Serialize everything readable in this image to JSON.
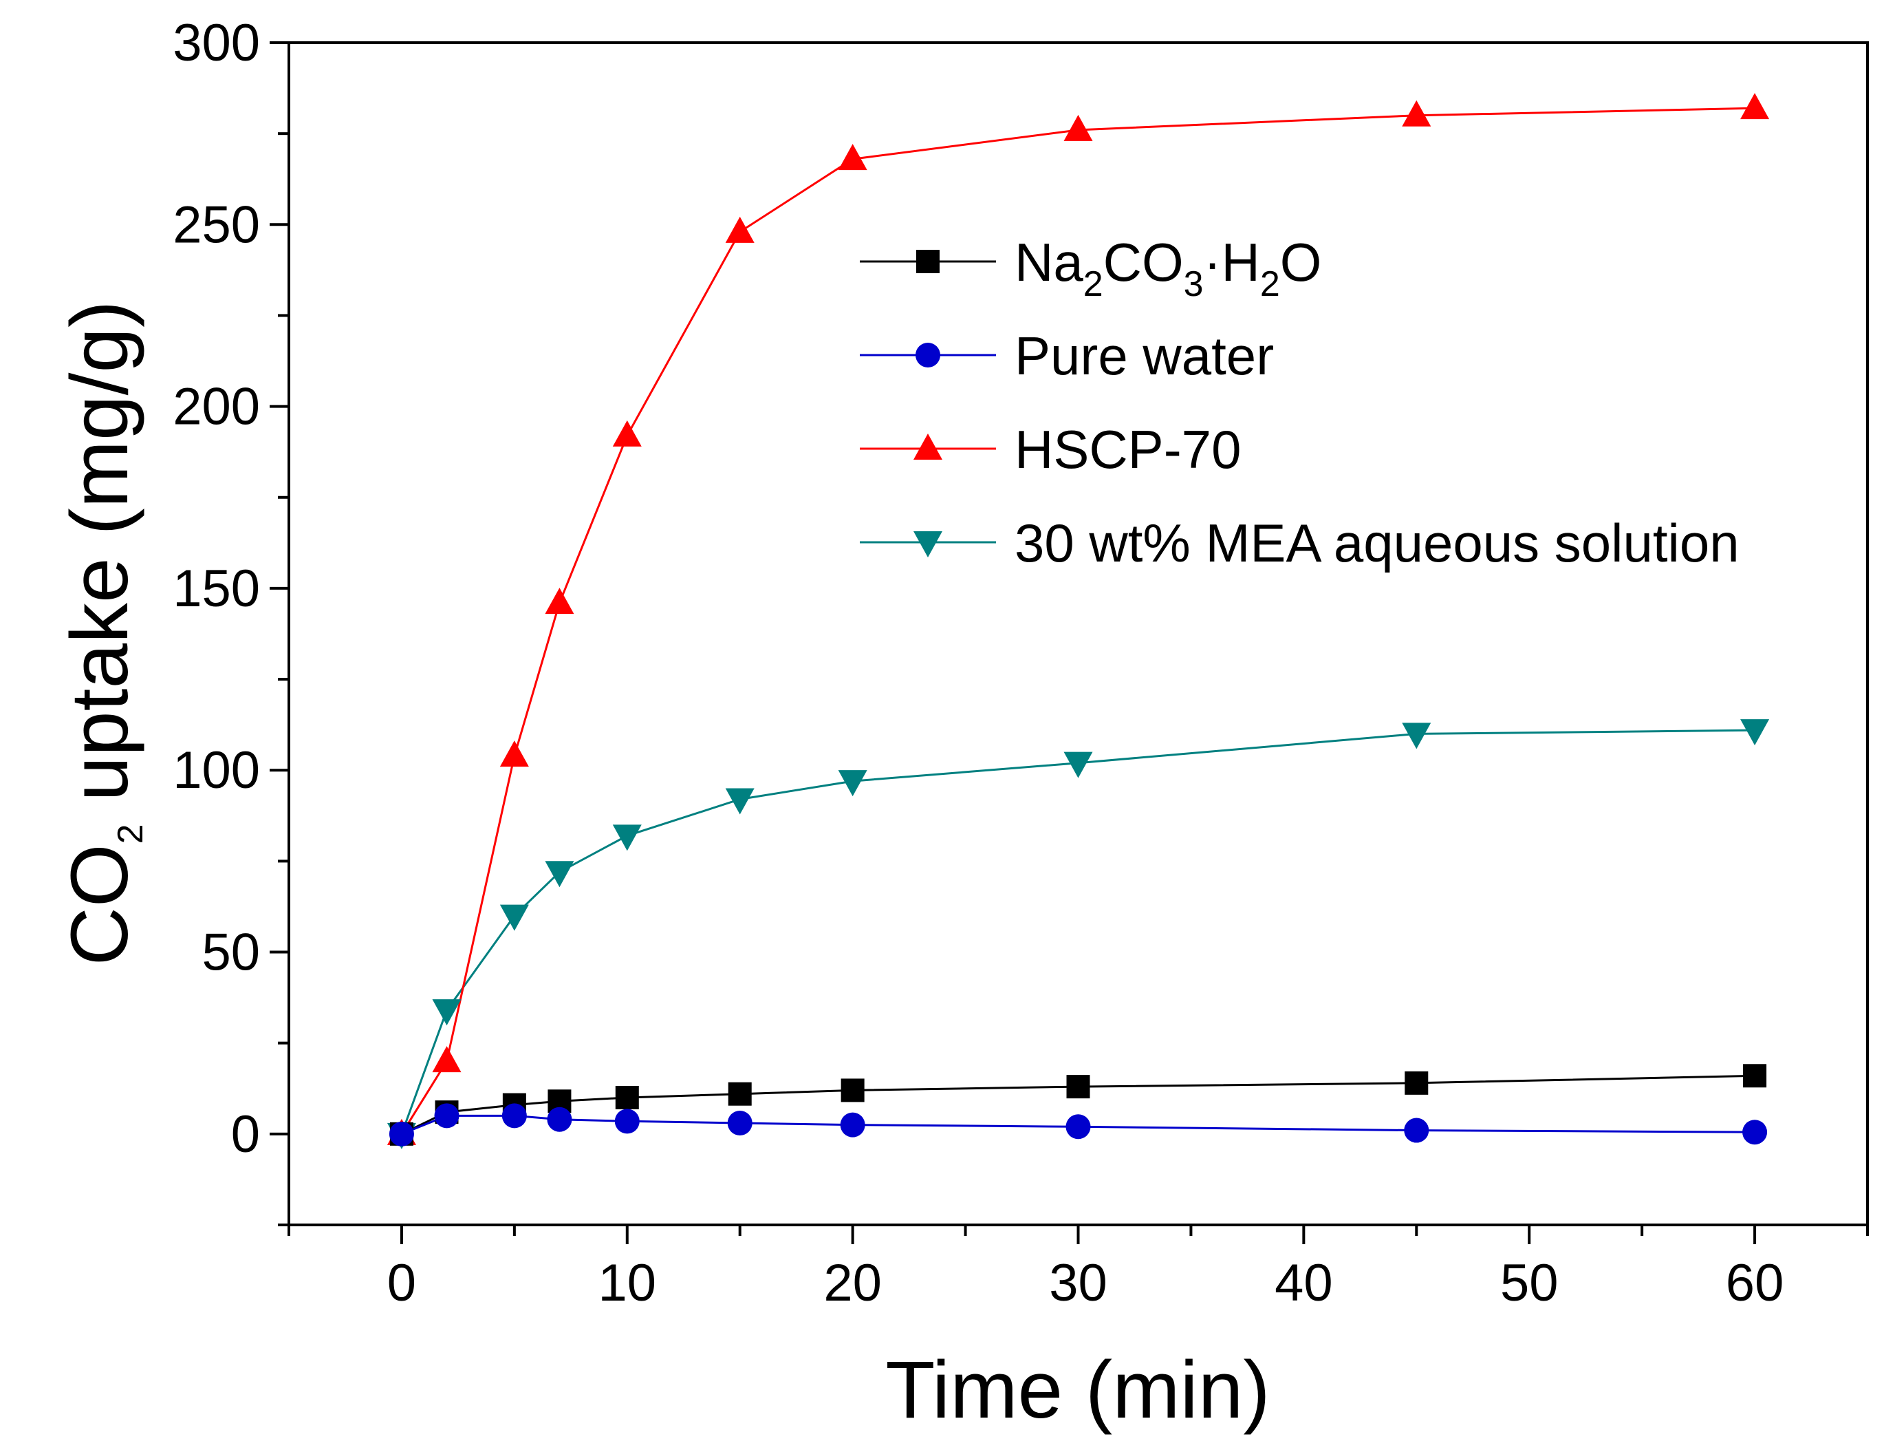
{
  "chart_data": {
    "type": "line",
    "title": "",
    "xlabel": "Time (min)",
    "ylabel": {
      "prefix": "CO",
      "subscript": "2",
      "suffix": " uptake (mg/g)"
    },
    "xlim": [
      -5,
      65
    ],
    "ylim": [
      -25,
      300
    ],
    "xticks": [
      0,
      10,
      20,
      30,
      40,
      50,
      60
    ],
    "yticks": [
      0,
      50,
      100,
      150,
      200,
      250,
      300
    ],
    "xtick_labels": [
      "0",
      "10",
      "20",
      "30",
      "40",
      "50",
      "60"
    ],
    "ytick_labels": [
      "0",
      "50",
      "100",
      "150",
      "200",
      "250",
      "300"
    ],
    "legend_position": "top-right",
    "series": [
      {
        "name": "Na2CO3·H2O",
        "label_parts": [
          {
            "t": "Na",
            "sub": false
          },
          {
            "t": "2",
            "sub": true
          },
          {
            "t": "CO",
            "sub": false
          },
          {
            "t": "3",
            "sub": true
          },
          {
            "t": "·H",
            "sub": false
          },
          {
            "t": "2",
            "sub": true
          },
          {
            "t": "O",
            "sub": false
          }
        ],
        "color": "#000000",
        "marker": "square",
        "x": [
          0,
          2,
          5,
          7,
          10,
          15,
          20,
          30,
          45,
          60
        ],
        "y": [
          0,
          6,
          8,
          9,
          10,
          11,
          12,
          13,
          14,
          16
        ]
      },
      {
        "name": "Pure water",
        "color": "#0000CC",
        "marker": "circle",
        "x": [
          0,
          2,
          5,
          7,
          10,
          15,
          20,
          30,
          45,
          60
        ],
        "y": [
          0,
          5,
          5,
          4,
          3.5,
          3,
          2.5,
          2,
          1,
          0.5
        ]
      },
      {
        "name": "HSCP-70",
        "color": "#FF0000",
        "marker": "triangle-up",
        "x": [
          0,
          2,
          5,
          7,
          10,
          15,
          20,
          30,
          45,
          60
        ],
        "y": [
          0,
          20,
          104,
          146,
          192,
          248,
          268,
          276,
          280,
          282
        ]
      },
      {
        "name": "30 wt% MEA aqueous solution",
        "color": "#008080",
        "marker": "triangle-down",
        "x": [
          0,
          2,
          5,
          7,
          10,
          15,
          20,
          30,
          45,
          60
        ],
        "y": [
          0,
          34,
          60,
          72,
          82,
          92,
          97,
          102,
          110,
          111
        ]
      }
    ]
  }
}
